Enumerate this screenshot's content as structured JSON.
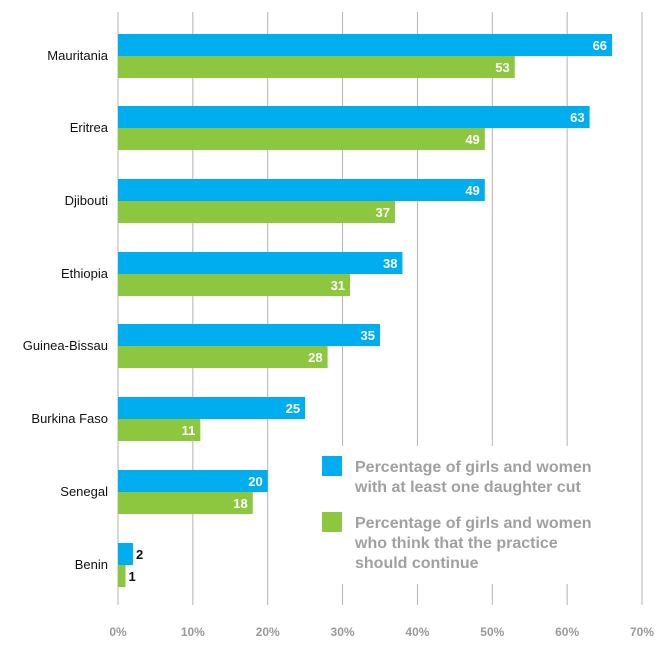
{
  "chart_data": {
    "type": "bar",
    "orientation": "horizontal",
    "categories": [
      "Mauritania",
      "Eritrea",
      "Djibouti",
      "Ethiopia",
      "Guinea-Bissau",
      "Burkina Faso",
      "Senegal",
      "Benin"
    ],
    "series": [
      {
        "name": "Percentage of girls and women with at least one daughter cut",
        "name_lines": [
          "Percentage of girls and women",
          "with at least one daughter cut"
        ],
        "color": "#00aeef",
        "values": [
          66,
          63,
          49,
          38,
          35,
          25,
          20,
          2
        ]
      },
      {
        "name": "Percentage of girls and women who think that the practice should continue",
        "name_lines": [
          "Percentage of girls and women",
          "who think that the practice",
          "should continue"
        ],
        "color": "#8dc63f",
        "values": [
          53,
          49,
          37,
          31,
          28,
          11,
          18,
          1
        ]
      }
    ],
    "xlim": [
      0,
      70
    ],
    "xticks": [
      "0%",
      "10%",
      "20%",
      "30%",
      "40%",
      "50%",
      "60%",
      "70%"
    ],
    "grid": true,
    "legend_position": "bottom-right",
    "colors": {
      "grid": "#b3b3b3",
      "axis_text": "#9a9a9a",
      "label_text": "#111111"
    }
  }
}
